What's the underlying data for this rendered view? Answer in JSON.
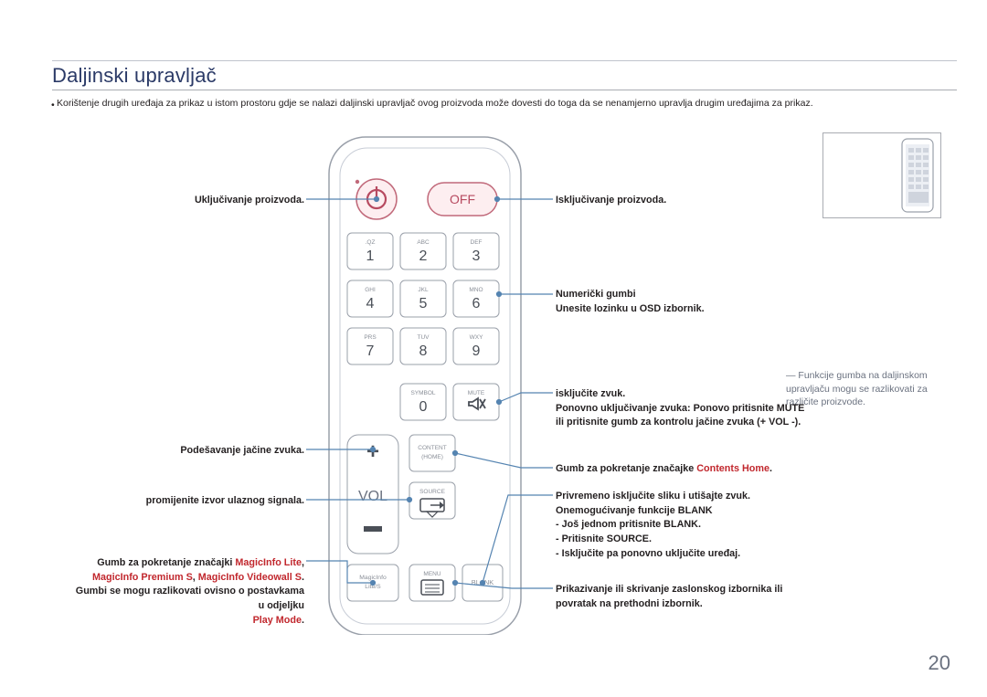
{
  "heading": "Daljinski upravljač",
  "intro": "Korištenje drugih uređaja za prikaz u istom prostoru gdje se nalazi daljinski upravljač ovog proizvoda može dovesti do toga da se nenamjerno upravlja drugim uređajima za prikaz.",
  "page_number": "20",
  "left_labels": {
    "power_on": "Uključivanje proizvoda.",
    "volume_adjust": "Podešavanje jačine zvuka.",
    "source_change": "promijenite izvor ulaznog signala.",
    "magicinfo_line1_pre": "Gumb za pokretanje značajki ",
    "magicinfo_line1_red": "MagicInfo Lite",
    "magicinfo_line1_post": ", ",
    "magicinfo_line2_red1": "MagicInfo Premium S",
    "magicinfo_line2_mid": ", ",
    "magicinfo_line2_red2": "MagicInfo Videowall S",
    "magicinfo_line2_post": ".",
    "buttons_vary_1": "Gumbi se mogu razlikovati ovisno o postavkama",
    "buttons_vary_2": "u odjeljku",
    "playmode_red": "Play Mode",
    "playmode_post": "."
  },
  "right_labels": {
    "power_off": "Isključivanje proizvoda.",
    "numeric_1": "Numerički gumbi",
    "numeric_2": "Unesite lozinku u OSD izbornik.",
    "mute_1": "isključite zvuk.",
    "mute_2": "Ponovno uključivanje zvuka: Ponovo pritisnite MUTE ili pritisnite gumb za kontrolu jačine zvuka (+ VOL -).",
    "contents_pre": "Gumb za pokretanje značajke ",
    "contents_red": "Contents Home",
    "contents_post": ".",
    "blank_1": "Privremeno isključite sliku i utišajte zvuk.",
    "blank_2": "Onemogućivanje funkcije BLANK",
    "blank_3": "- Još jednom pritisnite BLANK.",
    "blank_4": "- Pritisnite SOURCE.",
    "blank_5": "- Isključite pa ponovno uključite uređaj.",
    "menu_1": "Prikazivanje ili skrivanje zaslonskog izbornika ili povratak na prethodni izbornik."
  },
  "sidenote_1": "Funkcije gumba na daljinskom upravljaču mogu se razlikovati za različite proizvode.",
  "remote": {
    "off": "OFF",
    "keys": [
      {
        "n": "1",
        "t": ".QZ"
      },
      {
        "n": "2",
        "t": "ABC"
      },
      {
        "n": "3",
        "t": "DEF"
      },
      {
        "n": "4",
        "t": "GHI"
      },
      {
        "n": "5",
        "t": "JKL"
      },
      {
        "n": "6",
        "t": "MNO"
      },
      {
        "n": "7",
        "t": "PRS"
      },
      {
        "n": "8",
        "t": "TUV"
      },
      {
        "n": "9",
        "t": "WXY"
      }
    ],
    "zero": "0",
    "symbol": "SYMBOL",
    "mute": "MUTE",
    "vol": "VOL",
    "content": "CONTENT (HOME)",
    "source": "SOURCE",
    "magicinfo": "MagicInfo Lite/S",
    "menu": "MENU",
    "blank": "BLANK"
  }
}
